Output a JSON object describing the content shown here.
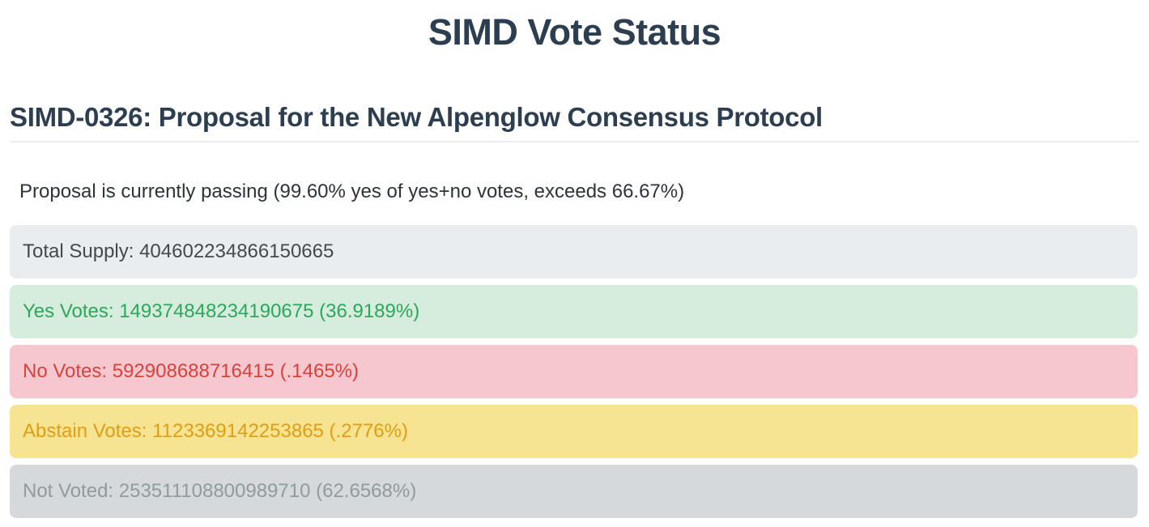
{
  "page": {
    "title": "SIMD Vote Status"
  },
  "proposal": {
    "heading": "SIMD-0326: Proposal for the New Alpenglow Consensus Protocol",
    "status_text": "Proposal is currently passing (99.60% yes of yes+no votes, exceeds 66.67%)",
    "passing_threshold_percent": "66.67%",
    "yes_of_yes_plus_no_percent": "99.60%"
  },
  "vote_rows": [
    {
      "label": "Total Supply",
      "value": "404602234866150665",
      "percent": null,
      "display": "Total Supply: 404602234866150665",
      "colors": {
        "background": "#e9edef",
        "text": "#43494e"
      }
    },
    {
      "label": "Yes Votes",
      "value": "149374848234190675",
      "percent": "36.9189%",
      "display": "Yes Votes: 149374848234190675 (36.9189%)",
      "colors": {
        "background": "#d6ecdc",
        "text": "#2ba85c"
      }
    },
    {
      "label": "No Votes",
      "value": "592908688716415",
      "percent": ".1465%",
      "display": "No Votes: 592908688716415 (.1465%)",
      "colors": {
        "background": "#f6c7cf",
        "text": "#d5433c"
      }
    },
    {
      "label": "Abstain Votes",
      "value": "1123369142253865",
      "percent": ".2776%",
      "display": "Abstain Votes: 1123369142253865 (.2776%)",
      "colors": {
        "background": "#f7e492",
        "text": "#e09d15"
      }
    },
    {
      "label": "Not Voted",
      "value": "253511108800989710",
      "percent": "62.6568%",
      "display": "Not Voted: 253511108800989710 (62.6568%)",
      "colors": {
        "background": "#d6d9dc",
        "text": "#909b9e"
      }
    }
  ],
  "theme": {
    "heading_color": "#2c3e50",
    "divider_color": "#ebeef0",
    "body_text_color": "#2d3338"
  }
}
